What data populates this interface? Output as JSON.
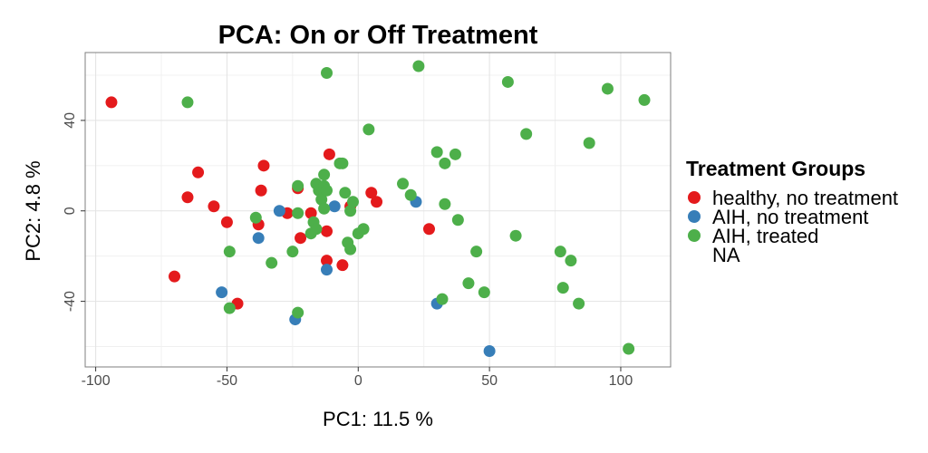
{
  "chart_data": {
    "type": "scatter",
    "title": "PCA: On or Off Treatment",
    "xlabel": "PC1: 11.5 %",
    "ylabel": "PC2: 4.8 %",
    "xlim": [
      -104,
      119
    ],
    "ylim": [
      -69,
      70
    ],
    "xticks": [
      -100,
      -50,
      0,
      50,
      100
    ],
    "xtick_labels": [
      "-100",
      "-50",
      "0",
      "50",
      "100"
    ],
    "yticks": [
      -40,
      0,
      40
    ],
    "ytick_labels": [
      "-40",
      "0",
      "40"
    ],
    "grid": true,
    "legend": {
      "title": "Treatment Groups",
      "position": "right",
      "entries": [
        {
          "label": "healthy, no treatment",
          "color": "#e41a1c"
        },
        {
          "label": "AIH, no treatment",
          "color": "#377eb8"
        },
        {
          "label": "AIH, treated",
          "color": "#4daf4a"
        },
        {
          "label": "NA",
          "color": null
        }
      ]
    },
    "series": [
      {
        "name": "healthy, no treatment",
        "color": "#e41a1c",
        "points": [
          [
            -94,
            48
          ],
          [
            -70,
            -29
          ],
          [
            -65,
            6
          ],
          [
            -61,
            17
          ],
          [
            -55,
            2
          ],
          [
            -50,
            -5
          ],
          [
            -46,
            -41
          ],
          [
            -38,
            -6
          ],
          [
            -37,
            9
          ],
          [
            -36,
            20
          ],
          [
            -27,
            -1
          ],
          [
            -23,
            10
          ],
          [
            -22,
            -12
          ],
          [
            -18,
            -1
          ],
          [
            -12,
            -22
          ],
          [
            -12,
            -9
          ],
          [
            -11,
            25
          ],
          [
            -6,
            -24
          ],
          [
            -3,
            2
          ],
          [
            5,
            8
          ],
          [
            7,
            4
          ],
          [
            27,
            -8
          ]
        ]
      },
      {
        "name": "AIH, no treatment",
        "color": "#377eb8",
        "points": [
          [
            -52,
            -36
          ],
          [
            -38,
            -12
          ],
          [
            -30,
            0
          ],
          [
            -24,
            -48
          ],
          [
            -12,
            -26
          ],
          [
            -9,
            2
          ],
          [
            22,
            4
          ],
          [
            30,
            -41
          ],
          [
            50,
            -62
          ]
        ]
      },
      {
        "name": "AIH, treated",
        "color": "#4daf4a",
        "points": [
          [
            -65,
            48
          ],
          [
            -49,
            -18
          ],
          [
            -49,
            -43
          ],
          [
            -39,
            -3
          ],
          [
            -33,
            -23
          ],
          [
            -25,
            -18
          ],
          [
            -23,
            11
          ],
          [
            -23,
            -1
          ],
          [
            -23,
            -45
          ],
          [
            -18,
            -10
          ],
          [
            -17,
            -5
          ],
          [
            -16,
            -8
          ],
          [
            -16,
            12
          ],
          [
            -15,
            9
          ],
          [
            -14,
            5
          ],
          [
            -13,
            11
          ],
          [
            -13,
            16
          ],
          [
            -13,
            1
          ],
          [
            -12,
            61
          ],
          [
            -12,
            9
          ],
          [
            -7,
            21
          ],
          [
            -6,
            21
          ],
          [
            -5,
            8
          ],
          [
            -4,
            -14
          ],
          [
            -3,
            0
          ],
          [
            -3,
            -17
          ],
          [
            -2,
            4
          ],
          [
            0,
            -10
          ],
          [
            2,
            -8
          ],
          [
            4,
            36
          ],
          [
            17,
            12
          ],
          [
            20,
            7
          ],
          [
            23,
            64
          ],
          [
            30,
            26
          ],
          [
            32,
            -39
          ],
          [
            33,
            3
          ],
          [
            33,
            21
          ],
          [
            37,
            25
          ],
          [
            38,
            -4
          ],
          [
            42,
            -32
          ],
          [
            45,
            -18
          ],
          [
            48,
            -36
          ],
          [
            57,
            57
          ],
          [
            60,
            -11
          ],
          [
            64,
            34
          ],
          [
            77,
            -18
          ],
          [
            78,
            -34
          ],
          [
            81,
            -22
          ],
          [
            84,
            -41
          ],
          [
            88,
            30
          ],
          [
            95,
            54
          ],
          [
            103,
            -61
          ],
          [
            109,
            49
          ]
        ]
      }
    ]
  }
}
